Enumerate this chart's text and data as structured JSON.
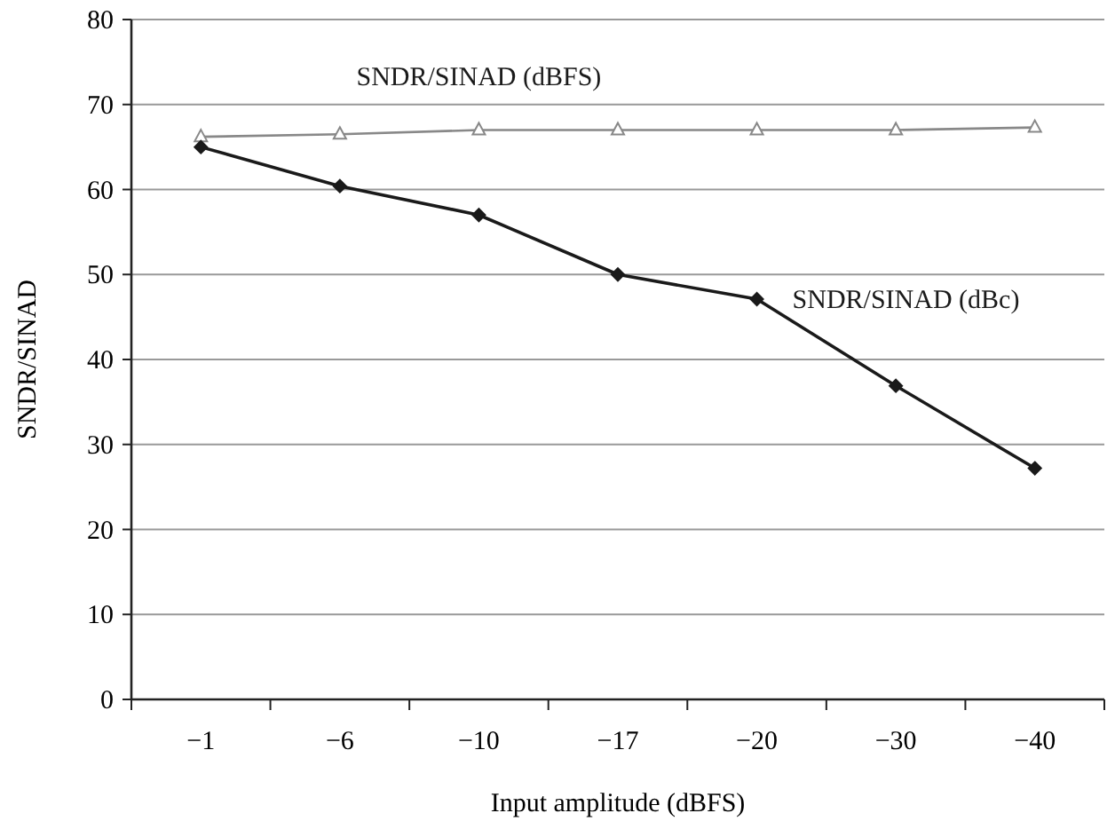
{
  "chart_data": {
    "type": "line",
    "xlabel": "Input amplitude (dBFS)",
    "ylabel": "SNDR/SINAD",
    "categories": [
      "−1",
      "−6",
      "−10",
      "−17",
      "−20",
      "−30",
      "−40"
    ],
    "ylim": [
      0,
      80
    ],
    "yticks": [
      0,
      10,
      20,
      30,
      40,
      50,
      60,
      70,
      80
    ],
    "grid": "y",
    "series": [
      {
        "name": "SNDR/SINAD (dBFS)",
        "color": "#888888",
        "marker": "triangle",
        "values": [
          66.2,
          66.5,
          67,
          67,
          67,
          67,
          67.3
        ]
      },
      {
        "name": "SNDR/SINAD (dBc)",
        "color": "#1a1a1a",
        "marker": "diamond",
        "values": [
          65,
          60.4,
          57,
          50,
          47.1,
          36.9,
          27.2
        ]
      }
    ]
  }
}
